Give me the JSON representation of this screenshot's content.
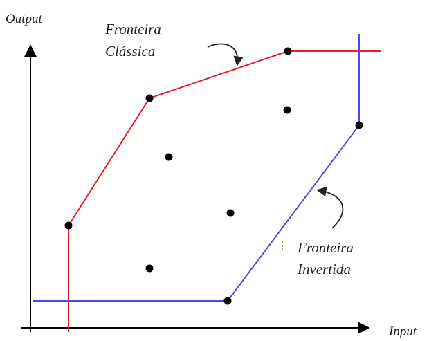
{
  "labels": {
    "y_axis": "Output",
    "x_axis": "Input",
    "classic_line1": "Fronteira",
    "classic_line2": "Clássica",
    "inverted_line1": "Fronteira",
    "inverted_line2": "Invertida"
  },
  "colors": {
    "classic": "#ee1c24",
    "inverted": "#4a4ae8",
    "axis": "#000000",
    "point": "#000000",
    "marker": "#e8a000"
  },
  "icons": {
    "classic_annotation": "curved-arrow-icon",
    "inverted_annotation": "curved-arrow-icon"
  }
}
